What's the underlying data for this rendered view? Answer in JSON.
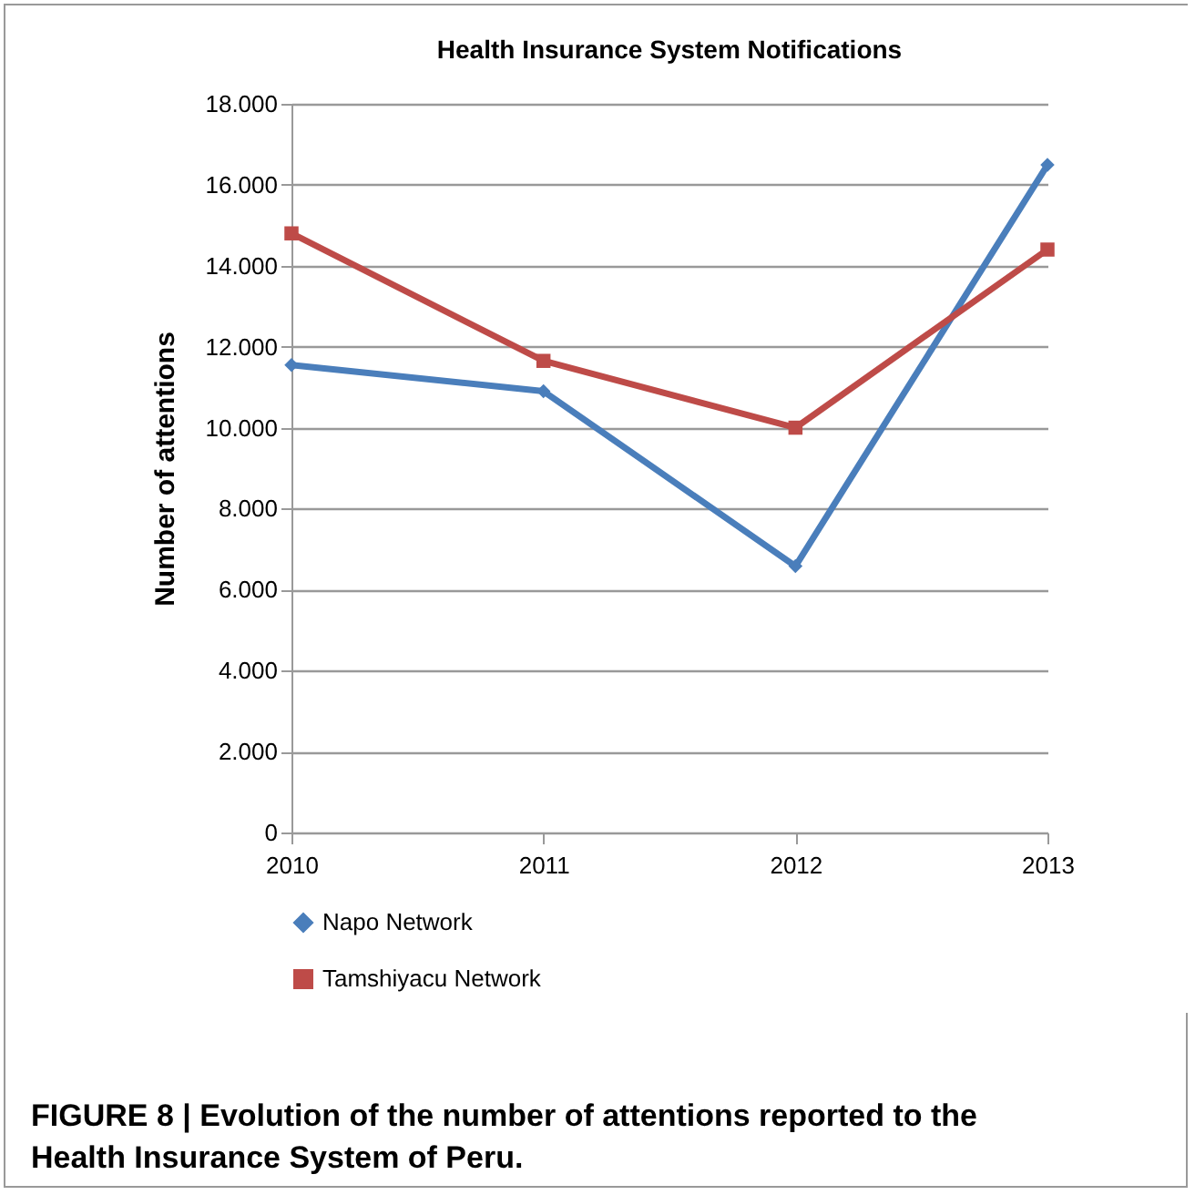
{
  "chart_data": {
    "type": "line",
    "title": "Health Insurance System Notifications",
    "ylabel": "Number of attentions",
    "categories": [
      "2010",
      "2011",
      "2012",
      "2013"
    ],
    "series": [
      {
        "name": "Napo Network",
        "color": "#4a7ebb",
        "marker": "diamond",
        "values": [
          11550,
          10900,
          6580,
          16490
        ]
      },
      {
        "name": "Tamshiyacu Network",
        "color": "#be4b48",
        "marker": "square",
        "values": [
          14800,
          11650,
          10000,
          14400
        ]
      }
    ],
    "ylim": [
      0,
      18000
    ],
    "yticks": [
      {
        "value": 0,
        "label": "0"
      },
      {
        "value": 2000,
        "label": "2.000"
      },
      {
        "value": 4000,
        "label": "4.000"
      },
      {
        "value": 6000,
        "label": "6.000"
      },
      {
        "value": 8000,
        "label": "8.000"
      },
      {
        "value": 10000,
        "label": "10.000"
      },
      {
        "value": 12000,
        "label": "12.000"
      },
      {
        "value": 14000,
        "label": "14.000"
      },
      {
        "value": 16000,
        "label": "16.000"
      },
      {
        "value": 18000,
        "label": "18.000"
      }
    ],
    "grid": "y",
    "legend": "bottom",
    "line_style": "solid",
    "annotations": [
      "FIGURE 8 | Evolution of the number of attentions reported to the Health Insurance System of Peru."
    ]
  }
}
